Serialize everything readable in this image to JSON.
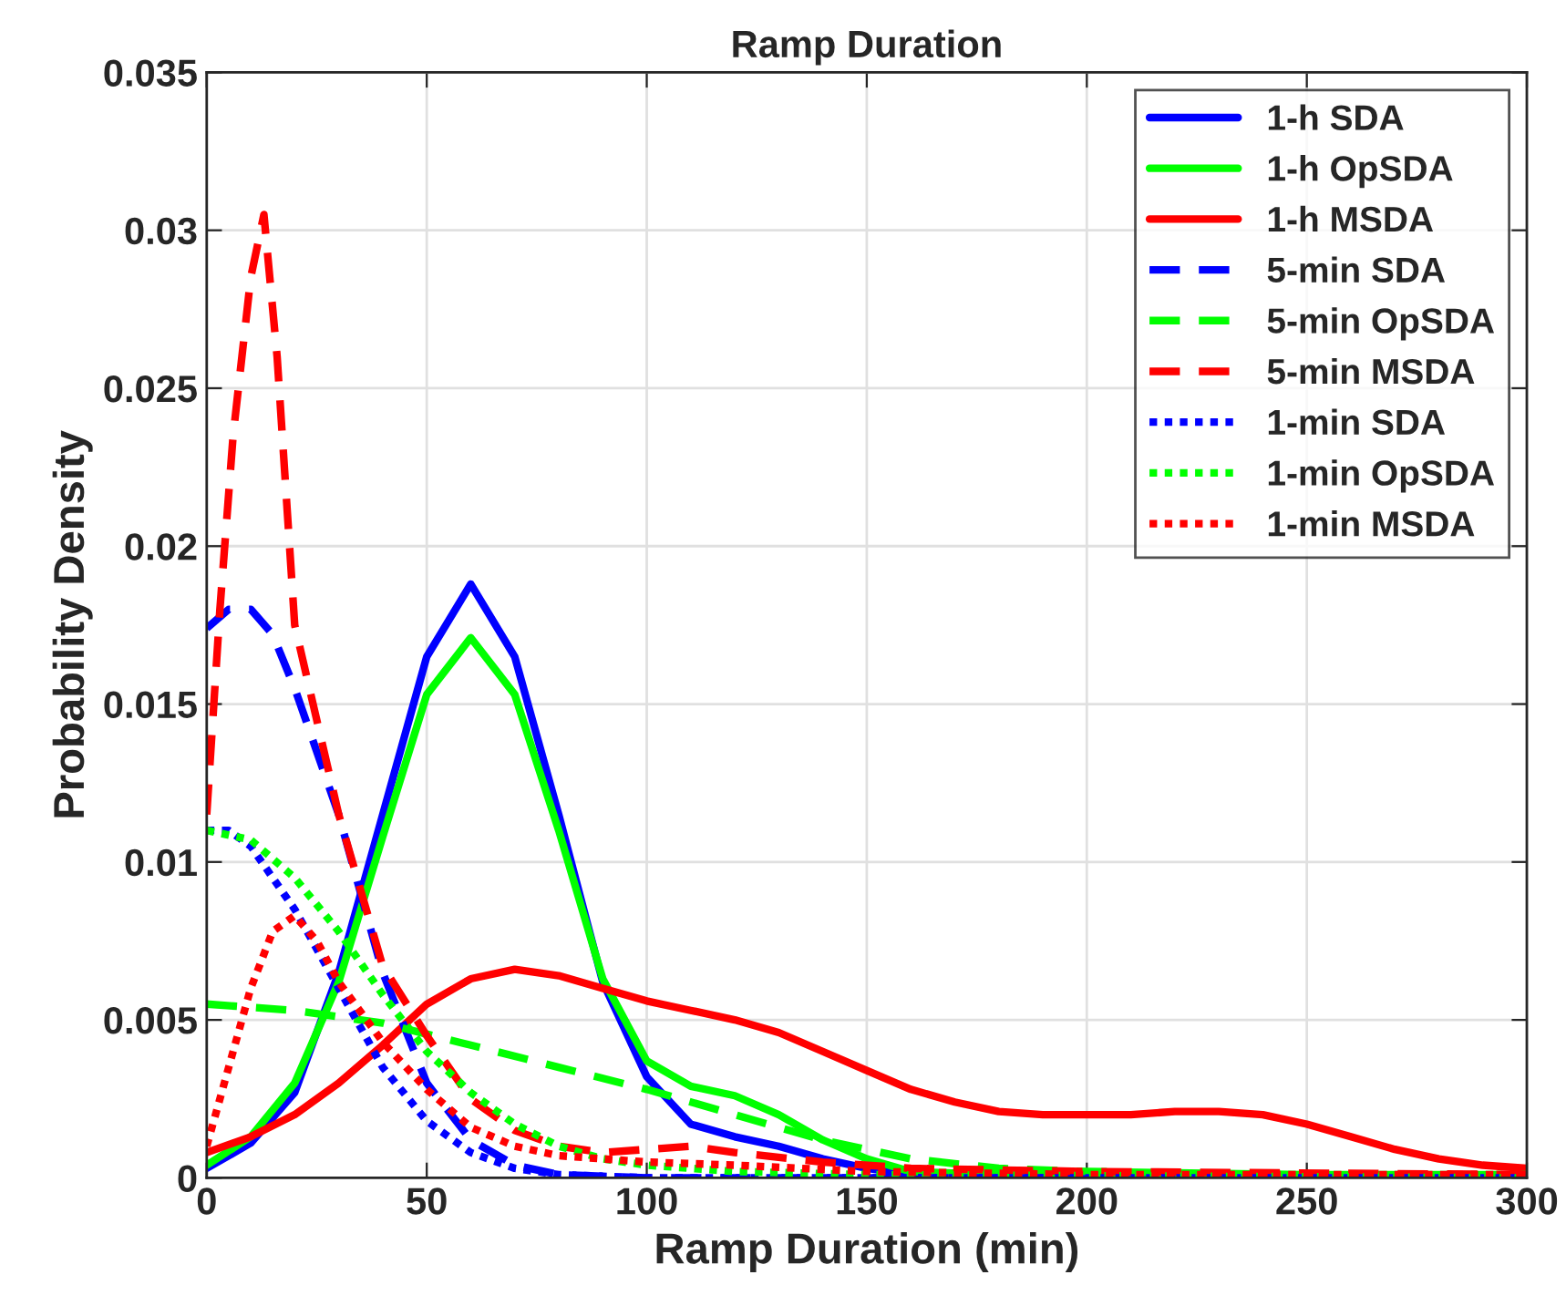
{
  "chart_data": {
    "type": "line",
    "title": "Ramp Duration",
    "xlabel": "Ramp Duration (min)",
    "ylabel": "Probability Density",
    "xlim": [
      0,
      300
    ],
    "xticks": [
      0,
      50,
      100,
      150,
      200,
      250,
      300
    ],
    "ylim": [
      0,
      0.035
    ],
    "yticks": [
      0,
      0.005,
      0.01,
      0.015,
      0.02,
      0.025,
      0.03,
      0.035
    ],
    "grid": true,
    "legend": "top right",
    "series": [
      {
        "name": "1-h SDA",
        "color": "#0000ff",
        "line_style": "solid",
        "x": [
          0,
          10,
          20,
          30,
          40,
          50,
          60,
          70,
          80,
          90,
          100,
          110,
          120,
          130,
          140,
          150,
          160,
          180,
          200,
          300
        ],
        "values": [
          0.0003,
          0.0011,
          0.0027,
          0.0065,
          0.0115,
          0.0165,
          0.0188,
          0.0165,
          0.0115,
          0.0062,
          0.0032,
          0.0017,
          0.0013,
          0.001,
          0.0006,
          0.0003,
          0.0001,
          0,
          0,
          0
        ]
      },
      {
        "name": "1-h OpSDA",
        "color": "#00ff00",
        "line_style": "solid",
        "x": [
          0,
          10,
          20,
          30,
          40,
          50,
          60,
          70,
          80,
          90,
          100,
          110,
          120,
          130,
          140,
          150,
          160,
          180,
          200,
          300
        ],
        "values": [
          0.0004,
          0.0013,
          0.003,
          0.0062,
          0.0108,
          0.0153,
          0.0171,
          0.0153,
          0.011,
          0.0063,
          0.0037,
          0.0029,
          0.0026,
          0.002,
          0.0012,
          0.0006,
          0.0002,
          0.0001,
          0.0001,
          0
        ]
      },
      {
        "name": "1-h MSDA",
        "color": "#ff0000",
        "line_style": "solid",
        "x": [
          0,
          10,
          20,
          30,
          40,
          50,
          60,
          70,
          80,
          90,
          100,
          110,
          120,
          130,
          140,
          150,
          160,
          170,
          180,
          190,
          200,
          210,
          220,
          230,
          240,
          250,
          260,
          270,
          280,
          290,
          300
        ],
        "values": [
          0.0008,
          0.0013,
          0.002,
          0.003,
          0.0042,
          0.0055,
          0.0063,
          0.0066,
          0.0064,
          0.006,
          0.0056,
          0.0053,
          0.005,
          0.0046,
          0.004,
          0.0034,
          0.0028,
          0.0024,
          0.0021,
          0.002,
          0.002,
          0.002,
          0.0021,
          0.0021,
          0.002,
          0.0017,
          0.0013,
          0.0009,
          0.0006,
          0.0004,
          0.0003
        ]
      },
      {
        "name": "5-min SDA",
        "color": "#0000ff",
        "line_style": "dashed",
        "x": [
          0,
          5,
          10,
          15,
          20,
          30,
          40,
          50,
          60,
          70,
          80,
          100,
          300
        ],
        "values": [
          0.0174,
          0.018,
          0.018,
          0.0172,
          0.0155,
          0.0115,
          0.0065,
          0.003,
          0.0012,
          0.0004,
          0.0001,
          0,
          0
        ]
      },
      {
        "name": "5-min OpSDA",
        "color": "#00ff00",
        "line_style": "dashed",
        "x": [
          0,
          20,
          40,
          60,
          80,
          100,
          120,
          140,
          160,
          180,
          200,
          250,
          300
        ],
        "values": [
          0.0055,
          0.0053,
          0.0049,
          0.0042,
          0.0035,
          0.0028,
          0.002,
          0.0012,
          0.0006,
          0.0003,
          0.0002,
          0.0001,
          0.0001
        ]
      },
      {
        "name": "5-min MSDA",
        "color": "#ff0000",
        "line_style": "dashed",
        "x": [
          0,
          3,
          6,
          10,
          13,
          16,
          20,
          25,
          30,
          40,
          50,
          60,
          70,
          80,
          90,
          100,
          110,
          120,
          140,
          160,
          200,
          300
        ],
        "values": [
          0.0115,
          0.018,
          0.0235,
          0.0285,
          0.0305,
          0.026,
          0.0175,
          0.0145,
          0.0115,
          0.0067,
          0.0045,
          0.0025,
          0.0015,
          0.001,
          0.0008,
          0.0009,
          0.001,
          0.0008,
          0.0005,
          0.0003,
          0.0002,
          0.0001
        ]
      },
      {
        "name": "1-min SDA",
        "color": "#0000ff",
        "line_style": "dotted",
        "x": [
          0,
          5,
          10,
          20,
          30,
          40,
          50,
          60,
          70,
          80,
          100,
          300
        ],
        "values": [
          0.011,
          0.011,
          0.0105,
          0.0085,
          0.006,
          0.0035,
          0.0018,
          0.0008,
          0.0003,
          0.0001,
          0,
          0
        ]
      },
      {
        "name": "1-min OpSDA",
        "color": "#00ff00",
        "line_style": "dotted",
        "x": [
          0,
          10,
          20,
          30,
          40,
          50,
          60,
          70,
          80,
          90,
          100,
          120,
          150,
          300
        ],
        "values": [
          0.011,
          0.0107,
          0.0095,
          0.0078,
          0.0058,
          0.004,
          0.0027,
          0.0017,
          0.001,
          0.0006,
          0.0004,
          0.0002,
          0.0001,
          0
        ]
      },
      {
        "name": "1-min MSDA",
        "color": "#ff0000",
        "line_style": "dotted",
        "x": [
          0,
          5,
          10,
          15,
          20,
          25,
          30,
          40,
          50,
          60,
          70,
          80,
          100,
          120,
          150,
          200,
          300
        ],
        "values": [
          0.001,
          0.0035,
          0.006,
          0.0078,
          0.0083,
          0.0075,
          0.0062,
          0.0043,
          0.0028,
          0.0016,
          0.001,
          0.0007,
          0.0005,
          0.0004,
          0.0002,
          0.0001,
          0.0001
        ]
      }
    ]
  }
}
